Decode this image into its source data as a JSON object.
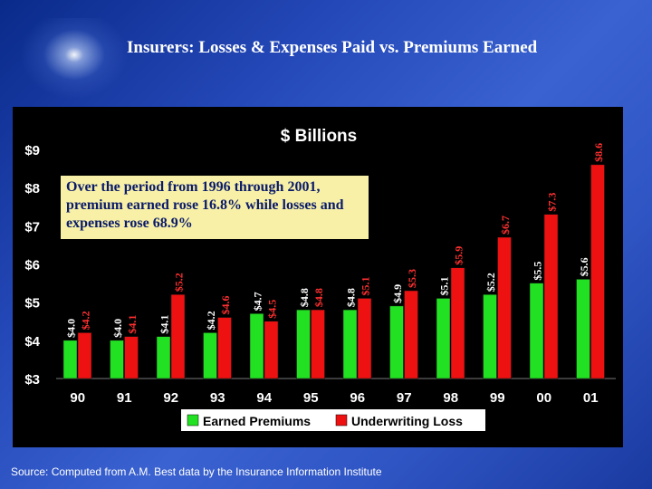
{
  "slide": {
    "title": "Insurers: Losses & Expenses Paid vs. Premiums Earned",
    "source": "Source:  Computed from A.M. Best data by the Insurance Information Institute",
    "callout": "Over the period from 1996 through 2001, premium earned rose 16.8% while losses and expenses rose 68.9%"
  },
  "chart_data": {
    "type": "bar",
    "title": "$ Billions",
    "categories": [
      "90",
      "91",
      "92",
      "93",
      "94",
      "95",
      "96",
      "97",
      "98",
      "99",
      "00",
      "01"
    ],
    "series": [
      {
        "name": "Earned Premiums",
        "color": "#22e022",
        "values": [
          4.0,
          4.0,
          4.1,
          4.2,
          4.7,
          4.8,
          4.8,
          4.9,
          5.1,
          5.2,
          5.5,
          5.6
        ],
        "labels": [
          "$4.0",
          "$4.0",
          "$4.1",
          "$4.2",
          "$4.7",
          "$4.8",
          "$4.8",
          "$4.9",
          "$5.1",
          "$5.2",
          "$5.5",
          "$5.6"
        ]
      },
      {
        "name": "Underwriting Loss",
        "color": "#ee1111",
        "values": [
          4.2,
          4.1,
          5.2,
          4.6,
          4.5,
          4.8,
          5.1,
          5.3,
          5.9,
          6.7,
          7.3,
          8.6
        ],
        "labels": [
          "$4.2",
          "$4.1",
          "$5.2",
          "$4.6",
          "$4.5",
          "$4.8",
          "$5.1",
          "$5.3",
          "$5.9",
          "$6.7",
          "$7.3",
          "$8.6"
        ]
      }
    ],
    "yticks": [
      "$3",
      "$4",
      "$5",
      "$6",
      "$7",
      "$8",
      "$9"
    ],
    "ylim": [
      3,
      9
    ],
    "legend_position": "bottom",
    "grid": false
  }
}
